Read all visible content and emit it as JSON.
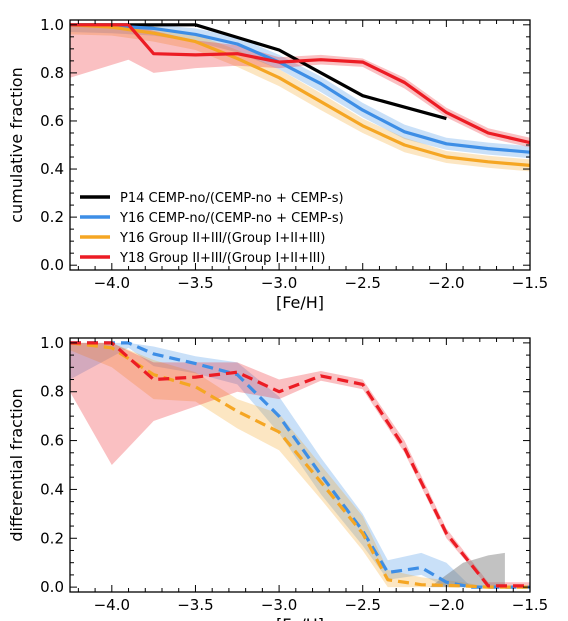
{
  "chart_data": [
    {
      "type": "line",
      "xlabel": "[Fe/H]",
      "ylabel": "cumulative fraction",
      "xlim": [
        -4.25,
        -1.5
      ],
      "ylim": [
        -0.02,
        1.02
      ],
      "xticks": [
        -4.0,
        -3.5,
        -3.0,
        -2.5,
        -2.0,
        -1.5
      ],
      "xtick_labels": [
        "−4.0",
        "−3.5",
        "−3.0",
        "−2.5",
        "−2.0",
        "−1.5"
      ],
      "yticks": [
        0.0,
        0.2,
        0.4,
        0.6,
        0.8,
        1.0
      ],
      "ytick_labels": [
        "0.0",
        "0.2",
        "0.4",
        "0.6",
        "0.8",
        "1.0"
      ],
      "legend_position": "lower-left",
      "series": [
        {
          "name": "P14 CEMP-no/(CEMP-no + CEMP-s)",
          "color": "#000000",
          "style": "solid",
          "x": [
            -4.25,
            -3.5,
            -3.0,
            -2.5,
            -2.0
          ],
          "y": [
            1.0,
            1.0,
            0.895,
            0.705,
            0.61
          ]
        },
        {
          "name": "Y16 CEMP-no/(CEMP-no + CEMP-s)",
          "color": "#3d8ee6",
          "style": "solid",
          "x": [
            -4.25,
            -4.0,
            -3.75,
            -3.5,
            -3.25,
            -3.0,
            -2.75,
            -2.5,
            -2.25,
            -2.0,
            -1.75,
            -1.5
          ],
          "y": [
            1.0,
            0.995,
            0.985,
            0.96,
            0.92,
            0.845,
            0.755,
            0.645,
            0.555,
            0.505,
            0.485,
            0.47
          ],
          "lower": [
            0.97,
            0.965,
            0.955,
            0.93,
            0.885,
            0.815,
            0.72,
            0.615,
            0.525,
            0.48,
            0.46,
            0.445
          ],
          "upper": [
            1.0,
            1.0,
            1.0,
            0.985,
            0.95,
            0.875,
            0.785,
            0.675,
            0.585,
            0.53,
            0.51,
            0.495
          ]
        },
        {
          "name": "Y16 Group II+III/(Group I+II+III)",
          "color": "#f5a623",
          "style": "solid",
          "x": [
            -4.25,
            -4.0,
            -3.75,
            -3.5,
            -3.25,
            -3.0,
            -2.75,
            -2.5,
            -2.25,
            -2.0,
            -1.75,
            -1.5
          ],
          "y": [
            1.0,
            0.99,
            0.965,
            0.93,
            0.86,
            0.78,
            0.68,
            0.58,
            0.5,
            0.45,
            0.43,
            0.415
          ],
          "lower": [
            0.96,
            0.955,
            0.93,
            0.895,
            0.825,
            0.745,
            0.645,
            0.55,
            0.47,
            0.425,
            0.405,
            0.39
          ],
          "upper": [
            1.0,
            1.0,
            0.995,
            0.96,
            0.895,
            0.815,
            0.715,
            0.61,
            0.53,
            0.475,
            0.455,
            0.44
          ]
        },
        {
          "name": "Y18 Group II+III/(Group I+II+III)",
          "color": "#ec1c24",
          "style": "solid",
          "x": [
            -4.25,
            -3.9,
            -3.75,
            -3.5,
            -3.25,
            -3.0,
            -2.75,
            -2.5,
            -2.25,
            -2.0,
            -1.75,
            -1.5
          ],
          "y": [
            1.0,
            1.0,
            0.88,
            0.875,
            0.88,
            0.845,
            0.855,
            0.845,
            0.76,
            0.635,
            0.55,
            0.51
          ],
          "lower": [
            0.78,
            0.855,
            0.8,
            0.82,
            0.83,
            0.82,
            0.835,
            0.825,
            0.735,
            0.615,
            0.53,
            0.49
          ],
          "upper": [
            1.0,
            1.0,
            0.975,
            0.935,
            0.915,
            0.865,
            0.875,
            0.86,
            0.78,
            0.655,
            0.57,
            0.53
          ]
        }
      ]
    },
    {
      "type": "line",
      "xlabel": "[Fe/H]",
      "ylabel": "differential fraction",
      "xlim": [
        -4.25,
        -1.5
      ],
      "ylim": [
        -0.02,
        1.02
      ],
      "xticks": [
        -4.0,
        -3.5,
        -3.0,
        -2.5,
        -2.0,
        -1.5
      ],
      "xtick_labels": [
        "−4.0",
        "−3.5",
        "−3.0",
        "−2.5",
        "−2.0",
        "−1.5"
      ],
      "yticks": [
        0.0,
        0.2,
        0.4,
        0.6,
        0.8,
        1.0
      ],
      "ytick_labels": [
        "0.0",
        "0.2",
        "0.4",
        "0.6",
        "0.8",
        "1.0"
      ],
      "series": [
        {
          "color": "#3d8ee6",
          "style": "dashed",
          "x": [
            -4.25,
            -3.9,
            -3.75,
            -3.5,
            -3.25,
            -3.0,
            -2.75,
            -2.5,
            -2.35,
            -2.15,
            -2.0,
            -1.85,
            -1.75,
            -1.5
          ],
          "y": [
            1.0,
            1.0,
            0.955,
            0.915,
            0.87,
            0.7,
            0.46,
            0.23,
            0.06,
            0.08,
            0.02,
            0.0,
            0.0,
            0.0
          ],
          "lower": [
            0.85,
            0.98,
            0.905,
            0.875,
            0.83,
            0.63,
            0.38,
            0.17,
            0.03,
            0.05,
            0.0,
            0.0,
            0.0,
            0.0
          ],
          "upper": [
            1.0,
            1.0,
            0.985,
            0.945,
            0.92,
            0.78,
            0.53,
            0.3,
            0.11,
            0.14,
            0.1,
            0.0,
            0.0,
            0.0
          ]
        },
        {
          "color": "#f5a623",
          "style": "dashed",
          "x": [
            -4.25,
            -4.0,
            -3.75,
            -3.5,
            -3.25,
            -3.0,
            -2.75,
            -2.5,
            -2.35,
            -2.15,
            -1.9,
            -1.75,
            -1.5
          ],
          "y": [
            1.0,
            0.98,
            0.87,
            0.82,
            0.72,
            0.635,
            0.43,
            0.22,
            0.03,
            0.01,
            0.005,
            0.0,
            0.0
          ],
          "lower": [
            0.97,
            0.9,
            0.77,
            0.76,
            0.65,
            0.56,
            0.36,
            0.15,
            0.0,
            0.0,
            0.0,
            0.0,
            0.0
          ],
          "upper": [
            1.0,
            1.0,
            0.93,
            0.88,
            0.77,
            0.71,
            0.5,
            0.29,
            0.07,
            0.04,
            0.02,
            0.0,
            0.0
          ]
        },
        {
          "color": "#ec1c24",
          "style": "dashed",
          "x": [
            -4.25,
            -4.0,
            -3.75,
            -3.5,
            -3.25,
            -3.0,
            -2.75,
            -2.5,
            -2.25,
            -2.0,
            -1.75,
            -1.5
          ],
          "y": [
            1.0,
            1.0,
            0.85,
            0.86,
            0.88,
            0.8,
            0.865,
            0.83,
            0.57,
            0.22,
            0.005,
            0.005
          ],
          "lower": [
            0.8,
            0.5,
            0.68,
            0.74,
            0.8,
            0.77,
            0.845,
            0.81,
            0.55,
            0.2,
            0.0,
            0.0
          ],
          "upper": [
            1.0,
            1.0,
            0.92,
            0.92,
            0.92,
            0.85,
            0.885,
            0.85,
            0.6,
            0.24,
            0.02,
            0.02
          ]
        },
        {
          "color": "#777777",
          "style": "band",
          "x": [
            -2.1,
            -1.9,
            -1.75,
            -1.65
          ],
          "y": [
            0.0,
            0.05,
            0.07,
            0.07
          ],
          "lower": [
            0.0,
            0.0,
            0.0,
            0.0
          ],
          "upper": [
            0.0,
            0.1,
            0.13,
            0.14
          ]
        }
      ]
    }
  ]
}
